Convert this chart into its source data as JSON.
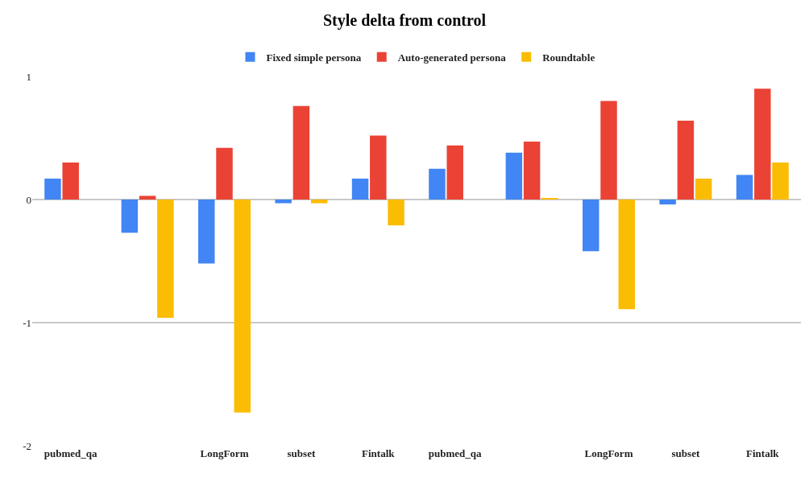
{
  "chart_data": {
    "type": "bar",
    "title": "Style delta from control",
    "categories": [
      "pubmed_qa",
      null,
      "LongForm",
      "subset",
      "Fintalk",
      "pubmed_qa",
      null,
      "LongForm",
      "subset",
      "Fintalk"
    ],
    "series": [
      {
        "name": "Fixed simple persona",
        "color": "#4285f4",
        "values": [
          0.17,
          -0.27,
          -0.52,
          -0.03,
          0.17,
          0.25,
          0.38,
          -0.42,
          -0.04,
          0.2
        ]
      },
      {
        "name": "Auto-generated persona",
        "color": "#ea4335",
        "values": [
          0.3,
          0.03,
          0.42,
          0.76,
          0.52,
          0.44,
          0.47,
          0.8,
          0.64,
          0.9
        ]
      },
      {
        "name": "Roundtable",
        "color": "#fbbc04",
        "values": [
          null,
          -0.96,
          -1.73,
          -0.03,
          -0.21,
          null,
          0.01,
          -0.89,
          0.17,
          0.3
        ]
      }
    ],
    "ylim": [
      -2,
      1
    ],
    "yticks": [
      -2,
      -1,
      0,
      1
    ],
    "grid": "y",
    "legend": "top"
  }
}
